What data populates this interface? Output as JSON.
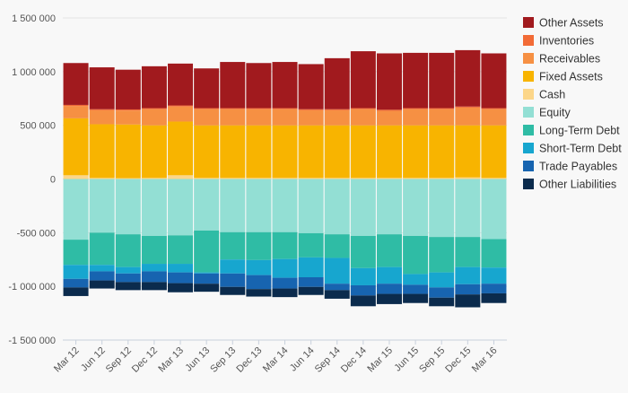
{
  "chart_data": {
    "type": "bar",
    "stacked": true,
    "categories": [
      "Mar 12",
      "Jun 12",
      "Sep 12",
      "Dec 12",
      "Mar 13",
      "Jun 13",
      "Sep 13",
      "Dec 13",
      "Mar 14",
      "Jun 14",
      "Sep 14",
      "Dec 14",
      "Mar 15",
      "Jun 15",
      "Sep 15",
      "Dec 15",
      "Mar 16"
    ],
    "ylim": [
      -1500000,
      1500000
    ],
    "yticks": [
      1500000,
      1000000,
      500000,
      0,
      -500000,
      -1000000,
      -1500000
    ],
    "ytick_labels": [
      "1 500 000",
      "1 000 000",
      "500 000",
      "0",
      "-500 000",
      "-1 000 000",
      "-1 500 000"
    ],
    "grid": true,
    "legend_position": "right",
    "series": [
      {
        "name": "Cash",
        "color": "#fcd689",
        "values": [
          35000,
          10000,
          8000,
          10000,
          35000,
          10000,
          10000,
          10000,
          10000,
          10000,
          10000,
          10000,
          10000,
          10000,
          10000,
          15000,
          10000
        ]
      },
      {
        "name": "Fixed Assets",
        "color": "#f8b400",
        "values": [
          530000,
          500000,
          500000,
          490000,
          500000,
          490000,
          490000,
          490000,
          490000,
          490000,
          490000,
          490000,
          490000,
          490000,
          490000,
          485000,
          490000
        ]
      },
      {
        "name": "Receivables",
        "color": "#f69043",
        "values": [
          115000,
          130000,
          130000,
          150000,
          140000,
          150000,
          150000,
          150000,
          150000,
          140000,
          140000,
          150000,
          135000,
          150000,
          150000,
          165000,
          150000
        ]
      },
      {
        "name": "Inventories",
        "color": "#f26b36",
        "values": [
          10000,
          10000,
          10000,
          10000,
          10000,
          10000,
          10000,
          10000,
          10000,
          10000,
          10000,
          10000,
          10000,
          10000,
          10000,
          10000,
          10000
        ]
      },
      {
        "name": "Other Assets",
        "color": "#a11a1e",
        "values": [
          390000,
          390000,
          370000,
          390000,
          390000,
          370000,
          430000,
          420000,
          430000,
          420000,
          475000,
          530000,
          525000,
          515000,
          515000,
          525000,
          510000
        ]
      },
      {
        "name": "Equity",
        "color": "#93dfd4",
        "values": [
          -565000,
          -500000,
          -515000,
          -530000,
          -525000,
          -480000,
          -495000,
          -495000,
          -495000,
          -505000,
          -515000,
          -530000,
          -515000,
          -530000,
          -540000,
          -540000,
          -560000
        ]
      },
      {
        "name": "Long-Term Debt",
        "color": "#2fbca5",
        "values": [
          -235000,
          -300000,
          -305000,
          -260000,
          -265000,
          -390000,
          -255000,
          -260000,
          -250000,
          -225000,
          -220000,
          -300000,
          -305000,
          -355000,
          -330000,
          -280000,
          -265000
        ]
      },
      {
        "name": "Short-Term Debt",
        "color": "#17a6cf",
        "values": [
          -130000,
          -60000,
          -60000,
          -70000,
          -80000,
          -10000,
          -130000,
          -140000,
          -175000,
          -185000,
          -240000,
          -160000,
          -155000,
          -100000,
          -140000,
          -160000,
          -150000
        ]
      },
      {
        "name": "Trade Payables",
        "color": "#1764b0",
        "values": [
          -80000,
          -85000,
          -80000,
          -100000,
          -100000,
          -95000,
          -125000,
          -130000,
          -100000,
          -90000,
          -60000,
          -95000,
          -95000,
          -85000,
          -95000,
          -95000,
          -90000
        ]
      },
      {
        "name": "Other Liabilities",
        "color": "#0b2b4d",
        "values": [
          -80000,
          -75000,
          -75000,
          -75000,
          -85000,
          -75000,
          -75000,
          -70000,
          -80000,
          -75000,
          -80000,
          -100000,
          -95000,
          -85000,
          -80000,
          -120000,
          -90000
        ]
      }
    ],
    "legend_order": [
      "Other Assets",
      "Inventories",
      "Receivables",
      "Fixed Assets",
      "Cash",
      "Equity",
      "Long-Term Debt",
      "Short-Term Debt",
      "Trade Payables",
      "Other Liabilities"
    ]
  }
}
